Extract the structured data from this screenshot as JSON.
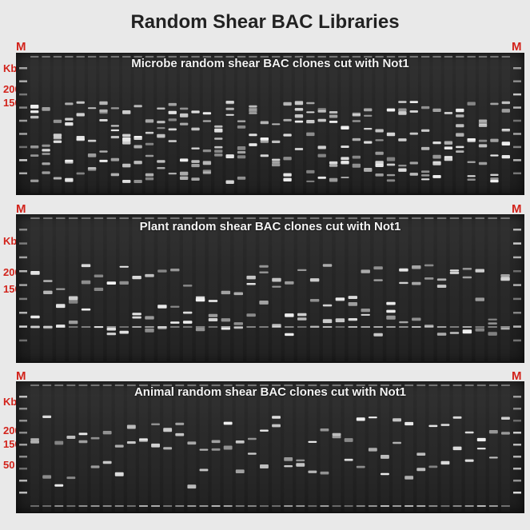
{
  "title": "Random Shear BAC Libraries",
  "marker_label": "M",
  "size_labels": {
    "kb": "Kb",
    "top": "200",
    "mid": "150",
    "low": "50"
  },
  "gels": [
    {
      "caption": "Microbe random shear BAC clones cut with Not1",
      "lanes": 42,
      "band_count": 6
    },
    {
      "caption": "Plant random shear BAC clones cut with Not1",
      "lanes": 38,
      "band_count": 3
    },
    {
      "caption": "Animal random shear BAC clones cut with Not1",
      "lanes": 40,
      "band_count": 2
    }
  ],
  "colors": {
    "marker": "#d2231b",
    "gel_background": "#262626",
    "band": "#f2f2f2",
    "page_background": "#e9e9e9"
  }
}
